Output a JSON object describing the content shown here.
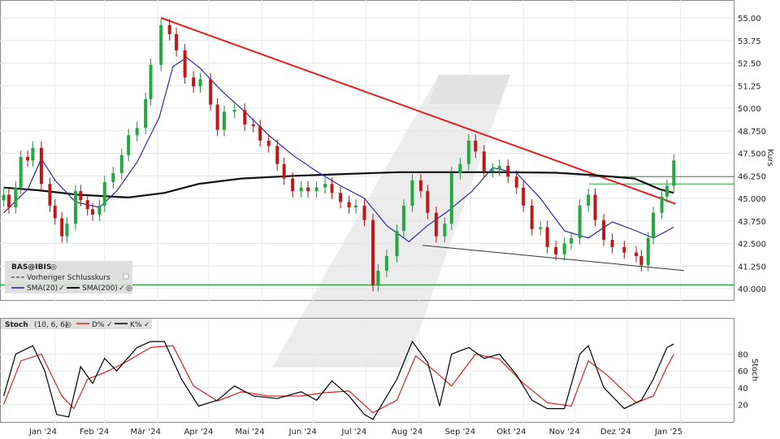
{
  "chart_data": [
    {
      "type": "candlestick",
      "ylabel": "Kurs",
      "ylim": [
        39.5,
        55.5
      ],
      "yticks": [
        "55.00",
        "53.75",
        "52.50",
        "51.25",
        "50.00",
        "48.750",
        "47.500",
        "46.250",
        "45.000",
        "43.750",
        "42.500",
        "41.250",
        "40.000"
      ],
      "x_months": [
        "Jan '24",
        "Feb '24",
        "Mär '24",
        "Apr '24",
        "Mai '24",
        "Jun '24",
        "Jul '24",
        "Aug '24",
        "Sep '24",
        "Okt '24",
        "Nov '24",
        "Dez '24",
        "Jan '25"
      ],
      "legend": {
        "symbol": "BAS@IBIS",
        "prev_close_label": "Vorheriger Schlusskurs",
        "sma20_label": "SMA(20)",
        "sma200_label": "SMA(200)"
      },
      "close_series": [
        [
          "2024-01-02",
          45.2
        ],
        [
          "2024-01-05",
          44.5
        ],
        [
          "2024-01-09",
          45.6
        ],
        [
          "2024-01-12",
          47.3
        ],
        [
          "2024-01-16",
          47.1
        ],
        [
          "2024-01-19",
          47.8
        ],
        [
          "2024-01-24",
          45.8
        ],
        [
          "2024-01-29",
          44.6
        ],
        [
          "2024-02-01",
          43.9
        ],
        [
          "2024-02-05",
          42.9
        ],
        [
          "2024-02-08",
          43.6
        ],
        [
          "2024-02-13",
          45.4
        ],
        [
          "2024-02-16",
          44.9
        ],
        [
          "2024-02-20",
          44.4
        ],
        [
          "2024-02-23",
          44.1
        ],
        [
          "2024-02-27",
          44.6
        ],
        [
          "2024-03-01",
          45.9
        ],
        [
          "2024-03-06",
          46.4
        ],
        [
          "2024-03-11",
          47.4
        ],
        [
          "2024-03-15",
          48.5
        ],
        [
          "2024-03-20",
          48.9
        ],
        [
          "2024-03-25",
          50.5
        ],
        [
          "2024-03-28",
          52.4
        ],
        [
          "2024-04-03",
          54.6
        ],
        [
          "2024-04-08",
          54.1
        ],
        [
          "2024-04-12",
          53.2
        ],
        [
          "2024-04-17",
          51.7
        ],
        [
          "2024-04-22",
          51.2
        ],
        [
          "2024-04-26",
          51.6
        ],
        [
          "2024-05-02",
          50.2
        ],
        [
          "2024-05-06",
          48.8
        ],
        [
          "2024-05-10",
          49.8
        ],
        [
          "2024-05-16",
          49.9
        ],
        [
          "2024-05-22",
          49.1
        ],
        [
          "2024-05-27",
          49.0
        ],
        [
          "2024-05-31",
          48.2
        ],
        [
          "2024-06-05",
          47.9
        ],
        [
          "2024-06-10",
          46.9
        ],
        [
          "2024-06-14",
          46.1
        ],
        [
          "2024-06-19",
          45.4
        ],
        [
          "2024-06-24",
          45.6
        ],
        [
          "2024-06-28",
          45.4
        ],
        [
          "2024-07-03",
          45.6
        ],
        [
          "2024-07-08",
          45.8
        ],
        [
          "2024-07-12",
          45.3
        ],
        [
          "2024-07-17",
          44.8
        ],
        [
          "2024-07-22",
          44.5
        ],
        [
          "2024-07-26",
          44.6
        ],
        [
          "2024-07-31",
          43.8
        ],
        [
          "2024-08-05",
          40.2
        ],
        [
          "2024-08-08",
          41.0
        ],
        [
          "2024-08-13",
          41.8
        ],
        [
          "2024-08-19",
          43.2
        ],
        [
          "2024-08-23",
          44.6
        ],
        [
          "2024-08-28",
          46.0
        ],
        [
          "2024-09-02",
          45.4
        ],
        [
          "2024-09-06",
          44.2
        ],
        [
          "2024-09-11",
          42.9
        ],
        [
          "2024-09-16",
          43.6
        ],
        [
          "2024-09-20",
          46.4
        ],
        [
          "2024-09-25",
          46.9
        ],
        [
          "2024-09-30",
          48.2
        ],
        [
          "2024-10-04",
          47.6
        ],
        [
          "2024-10-09",
          46.5
        ],
        [
          "2024-10-14",
          46.6
        ],
        [
          "2024-10-18",
          46.8
        ],
        [
          "2024-10-23",
          46.2
        ],
        [
          "2024-10-28",
          45.6
        ],
        [
          "2024-11-01",
          44.6
        ],
        [
          "2024-11-06",
          43.3
        ],
        [
          "2024-11-11",
          43.4
        ],
        [
          "2024-11-15",
          42.3
        ],
        [
          "2024-11-20",
          41.9
        ],
        [
          "2024-11-25",
          42.5
        ],
        [
          "2024-11-29",
          42.8
        ],
        [
          "2024-12-04",
          44.6
        ],
        [
          "2024-12-09",
          45.2
        ],
        [
          "2024-12-13",
          43.8
        ],
        [
          "2024-12-18",
          42.7
        ],
        [
          "2024-12-23",
          42.3
        ],
        [
          "2024-12-30",
          42.0
        ],
        [
          "2025-01-06",
          41.8
        ],
        [
          "2025-01-09",
          41.3
        ],
        [
          "2025-01-13",
          42.8
        ],
        [
          "2025-01-16",
          44.2
        ],
        [
          "2025-01-21",
          45.1
        ],
        [
          "2025-01-24",
          45.7
        ],
        [
          "2025-01-28",
          47.1
        ]
      ],
      "sma20": [
        [
          "2024-01-02",
          44.2
        ],
        [
          "2024-01-16",
          45.5
        ],
        [
          "2024-01-24",
          47.2
        ],
        [
          "2024-02-01",
          46.0
        ],
        [
          "2024-02-13",
          44.8
        ],
        [
          "2024-02-27",
          44.5
        ],
        [
          "2024-03-08",
          45.4
        ],
        [
          "2024-03-20",
          47.0
        ],
        [
          "2024-04-02",
          49.5
        ],
        [
          "2024-04-10",
          52.3
        ],
        [
          "2024-04-18",
          52.8
        ],
        [
          "2024-04-26",
          52.2
        ],
        [
          "2024-05-08",
          51.0
        ],
        [
          "2024-05-22",
          49.8
        ],
        [
          "2024-06-05",
          48.5
        ],
        [
          "2024-06-19",
          47.4
        ],
        [
          "2024-07-03",
          46.5
        ],
        [
          "2024-07-17",
          45.7
        ],
        [
          "2024-07-31",
          45.0
        ],
        [
          "2024-08-13",
          43.5
        ],
        [
          "2024-08-26",
          42.6
        ],
        [
          "2024-09-06",
          43.5
        ],
        [
          "2024-09-18",
          44.3
        ],
        [
          "2024-10-02",
          45.4
        ],
        [
          "2024-10-14",
          46.7
        ],
        [
          "2024-10-28",
          46.4
        ],
        [
          "2024-11-11",
          45.0
        ],
        [
          "2024-11-25",
          43.2
        ],
        [
          "2024-12-09",
          42.8
        ],
        [
          "2024-12-23",
          43.7
        ],
        [
          "2025-01-06",
          43.2
        ],
        [
          "2025-01-16",
          42.8
        ],
        [
          "2025-01-24",
          43.2
        ],
        [
          "2025-01-28",
          43.4
        ]
      ],
      "sma200": [
        [
          "2024-01-02",
          45.6
        ],
        [
          "2024-01-22",
          45.45
        ],
        [
          "2024-02-15",
          45.2
        ],
        [
          "2024-03-15",
          45.05
        ],
        [
          "2024-04-05",
          45.3
        ],
        [
          "2024-04-25",
          45.8
        ],
        [
          "2024-05-20",
          46.1
        ],
        [
          "2024-06-20",
          46.25
        ],
        [
          "2024-07-20",
          46.35
        ],
        [
          "2024-08-20",
          46.45
        ],
        [
          "2024-09-20",
          46.45
        ],
        [
          "2024-10-20",
          46.45
        ],
        [
          "2024-11-20",
          46.42
        ],
        [
          "2024-12-10",
          46.3
        ],
        [
          "2025-01-05",
          46.1
        ],
        [
          "2025-01-20",
          45.5
        ],
        [
          "2025-01-28",
          45.3
        ]
      ],
      "trend_resistance": [
        [
          "2024-04-03",
          55.0
        ],
        [
          "2025-01-29",
          44.7
        ]
      ],
      "trend_support": [
        [
          "2024-09-03",
          42.4
        ],
        [
          "2025-02-03",
          41.0
        ]
      ],
      "horizontal_levels": [
        40.2,
        45.8,
        46.2
      ],
      "prev_close": 46.2
    },
    {
      "type": "line",
      "title": "Stoch",
      "params": "(10, 6, 6)",
      "ylabel": "Stoch",
      "ylim": [
        0,
        100
      ],
      "yticks": [
        "80",
        "60",
        "40",
        "20"
      ],
      "series": [
        {
          "name": "K%",
          "color": "#000000",
          "values": [
            [
              "2024-01-02",
              30
            ],
            [
              "2024-01-09",
              80
            ],
            [
              "2024-01-19",
              90
            ],
            [
              "2024-01-26",
              60
            ],
            [
              "2024-02-02",
              8
            ],
            [
              "2024-02-09",
              5
            ],
            [
              "2024-02-16",
              65
            ],
            [
              "2024-02-23",
              45
            ],
            [
              "2024-03-01",
              75
            ],
            [
              "2024-03-08",
              60
            ],
            [
              "2024-03-20",
              88
            ],
            [
              "2024-03-28",
              95
            ],
            [
              "2024-04-05",
              95
            ],
            [
              "2024-04-15",
              50
            ],
            [
              "2024-04-25",
              18
            ],
            [
              "2024-05-06",
              25
            ],
            [
              "2024-05-16",
              42
            ],
            [
              "2024-05-27",
              30
            ],
            [
              "2024-06-10",
              27
            ],
            [
              "2024-06-24",
              35
            ],
            [
              "2024-07-03",
              25
            ],
            [
              "2024-07-12",
              48
            ],
            [
              "2024-07-22",
              30
            ],
            [
              "2024-07-31",
              8
            ],
            [
              "2024-08-05",
              2
            ],
            [
              "2024-08-19",
              50
            ],
            [
              "2024-08-28",
              95
            ],
            [
              "2024-09-06",
              70
            ],
            [
              "2024-09-13",
              18
            ],
            [
              "2024-09-20",
              80
            ],
            [
              "2024-09-30",
              88
            ],
            [
              "2024-10-09",
              75
            ],
            [
              "2024-10-18",
              80
            ],
            [
              "2024-10-28",
              55
            ],
            [
              "2024-11-06",
              25
            ],
            [
              "2024-11-15",
              15
            ],
            [
              "2024-11-25",
              15
            ],
            [
              "2024-12-04",
              80
            ],
            [
              "2024-12-09",
              90
            ],
            [
              "2024-12-18",
              40
            ],
            [
              "2024-12-30",
              15
            ],
            [
              "2025-01-09",
              25
            ],
            [
              "2025-01-16",
              50
            ],
            [
              "2025-01-24",
              88
            ],
            [
              "2025-01-28",
              92
            ]
          ]
        },
        {
          "name": "D%",
          "color": "#dd2222",
          "values": [
            [
              "2024-01-02",
              20
            ],
            [
              "2024-01-12",
              72
            ],
            [
              "2024-01-24",
              80
            ],
            [
              "2024-02-05",
              30
            ],
            [
              "2024-02-12",
              15
            ],
            [
              "2024-02-20",
              50
            ],
            [
              "2024-03-01",
              58
            ],
            [
              "2024-03-13",
              70
            ],
            [
              "2024-03-28",
              88
            ],
            [
              "2024-04-10",
              90
            ],
            [
              "2024-04-22",
              42
            ],
            [
              "2024-05-06",
              24
            ],
            [
              "2024-05-20",
              35
            ],
            [
              "2024-06-05",
              30
            ],
            [
              "2024-06-24",
              30
            ],
            [
              "2024-07-08",
              34
            ],
            [
              "2024-07-22",
              36
            ],
            [
              "2024-08-05",
              10
            ],
            [
              "2024-08-19",
              25
            ],
            [
              "2024-08-30",
              78
            ],
            [
              "2024-09-10",
              60
            ],
            [
              "2024-09-20",
              42
            ],
            [
              "2024-10-04",
              80
            ],
            [
              "2024-10-18",
              74
            ],
            [
              "2024-11-01",
              45
            ],
            [
              "2024-11-15",
              22
            ],
            [
              "2024-11-29",
              18
            ],
            [
              "2024-12-09",
              72
            ],
            [
              "2024-12-20",
              55
            ],
            [
              "2025-01-06",
              22
            ],
            [
              "2025-01-16",
              30
            ],
            [
              "2025-01-24",
              65
            ],
            [
              "2025-01-28",
              80
            ]
          ]
        }
      ]
    }
  ]
}
